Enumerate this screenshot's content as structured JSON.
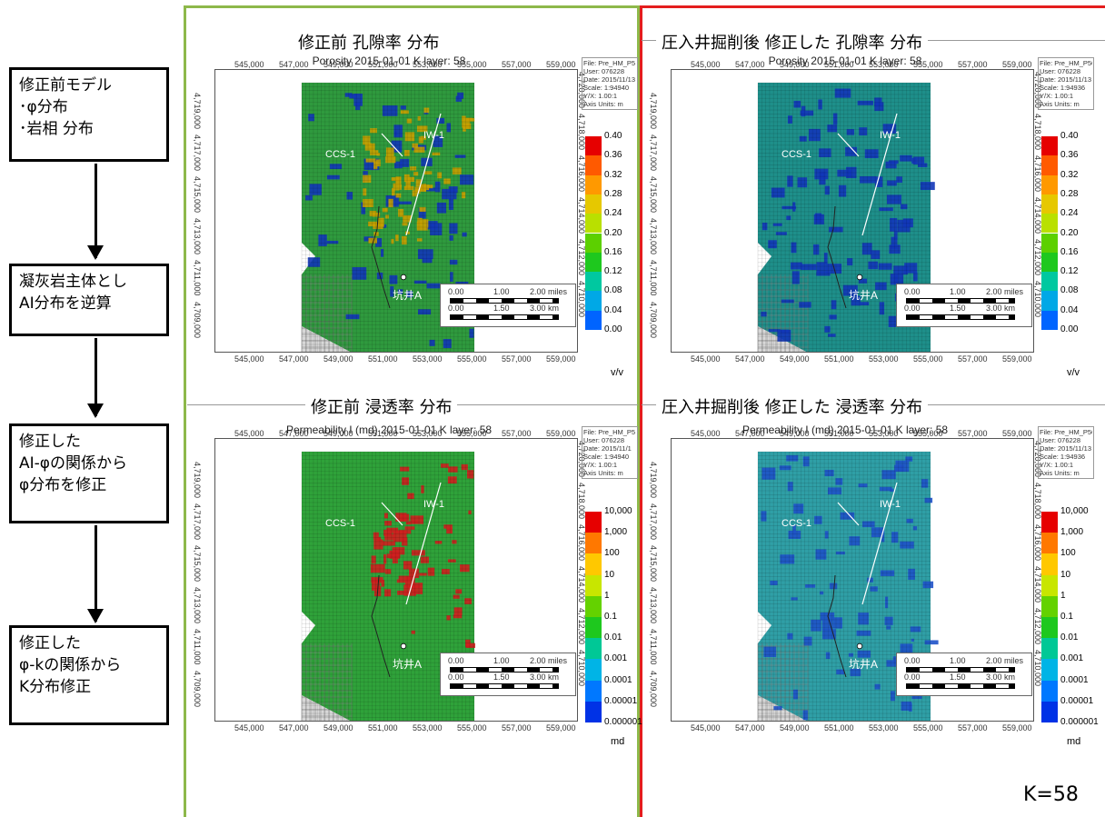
{
  "flow": {
    "steps": [
      {
        "lines": [
          "修正前モデル",
          "･φ分布",
          "･岩相 分布"
        ]
      },
      {
        "lines": [
          "凝灰岩主体とし",
          "AI分布を逆算"
        ]
      },
      {
        "lines": [
          "修正した",
          "AI-φの関係から",
          "φ分布を修正"
        ]
      },
      {
        "lines": [
          "修正した",
          "φ-kの関係から",
          "K分布修正"
        ]
      }
    ]
  },
  "sections": {
    "porosity_before": "修正前 孔隙率 分布",
    "porosity_after": "圧入井掘削後 修正した 孔隙率 分布",
    "perm_before": "修正前 浸透率 分布",
    "perm_after": "圧入井掘削後 修正した 浸透率 分布"
  },
  "maps": {
    "porosity_title": "Porosity 2015-01-01     K layer: 58",
    "perm_title": "Permeability I (md) 2015-01-01     K layer: 58",
    "x_ticks": [
      "545,000",
      "547,000",
      "549,000",
      "551,000",
      "553,000",
      "555,000",
      "557,000",
      "559,000"
    ],
    "y_ticks": [
      "4,709,000",
      "4,711,000",
      "4,713,000",
      "4,715,000",
      "4,717,000",
      "4,719,000"
    ],
    "y_ticks_right": [
      "4,710,000",
      "4,712,000",
      "4,714,000",
      "4,716,000",
      "4,718,000",
      "4,720,000"
    ],
    "info_pb": [
      "File: Pre_HM_P5",
      "User: 076228",
      "Date: 2015/11/13",
      "Scale: 1:94940",
      "Y/X: 1.00:1",
      "Axis Units: m"
    ],
    "info_pa": [
      "File: Pre_HM_P50",
      "User: 076228",
      "Date: 2015/11/13",
      "Scale: 1:94936",
      "Y/X: 1.00:1",
      "Axis Units: m"
    ],
    "info_kb": [
      "File: Pre_HM_P5",
      "User: 076228",
      "Date: 2015/11/1",
      "Scale: 1:94940",
      "Y/X: 1.00:1",
      "Axis Units: m"
    ],
    "info_ka": [
      "File: Pre_HM_P50",
      "User: 076228",
      "Date: 2015/11/13",
      "Scale: 1:94936",
      "Y/X: 1.00:1",
      "Axis Units: m"
    ],
    "porosity_legend": [
      "0.40",
      "0.36",
      "0.32",
      "0.28",
      "0.24",
      "0.20",
      "0.16",
      "0.12",
      "0.08",
      "0.04",
      "0.00"
    ],
    "porosity_colors": [
      "#e60000",
      "#ff5a00",
      "#ff9900",
      "#e6c800",
      "#b9e000",
      "#5cd000",
      "#1ec81e",
      "#00c8a0",
      "#00a8e6",
      "#0064ff",
      "#0000c8"
    ],
    "porosity_unit": "v/v",
    "perm_legend": [
      "10,000",
      "1,000",
      "100",
      "10",
      "1",
      "0.1",
      "0.01",
      "0.001",
      "0.0001",
      "0.00001",
      "0.000001"
    ],
    "perm_colors": [
      "#e60000",
      "#ff7800",
      "#ffc800",
      "#c8e600",
      "#64d200",
      "#1ec81e",
      "#00c896",
      "#00b4e6",
      "#0078ff",
      "#0032e6",
      "#0000b4"
    ],
    "perm_unit": "md",
    "well_ccs": "CCS-1",
    "well_iw": "IW-1",
    "well_a": "坑井A",
    "scale_miles": [
      "0.00",
      "1.00",
      "2.00 miles"
    ],
    "scale_km": [
      "0.00",
      "1.50",
      "3.00 km"
    ],
    "fill_colors": {
      "pb": "#2f9a3e",
      "pa": "#1e8f8a",
      "kb": "#2fa23a",
      "ka": "#2f9fa6"
    },
    "spot_colors": {
      "pb_low": "#1236b8",
      "pb_high": "#c8a000",
      "pa_low": "#1236b8",
      "kb_high": "#cf1f1f",
      "ka_low": "#1e52c8"
    }
  },
  "k_label": "K=58",
  "colors": {
    "left_frame": "#8db84a",
    "right_frame": "#e41d1d"
  }
}
